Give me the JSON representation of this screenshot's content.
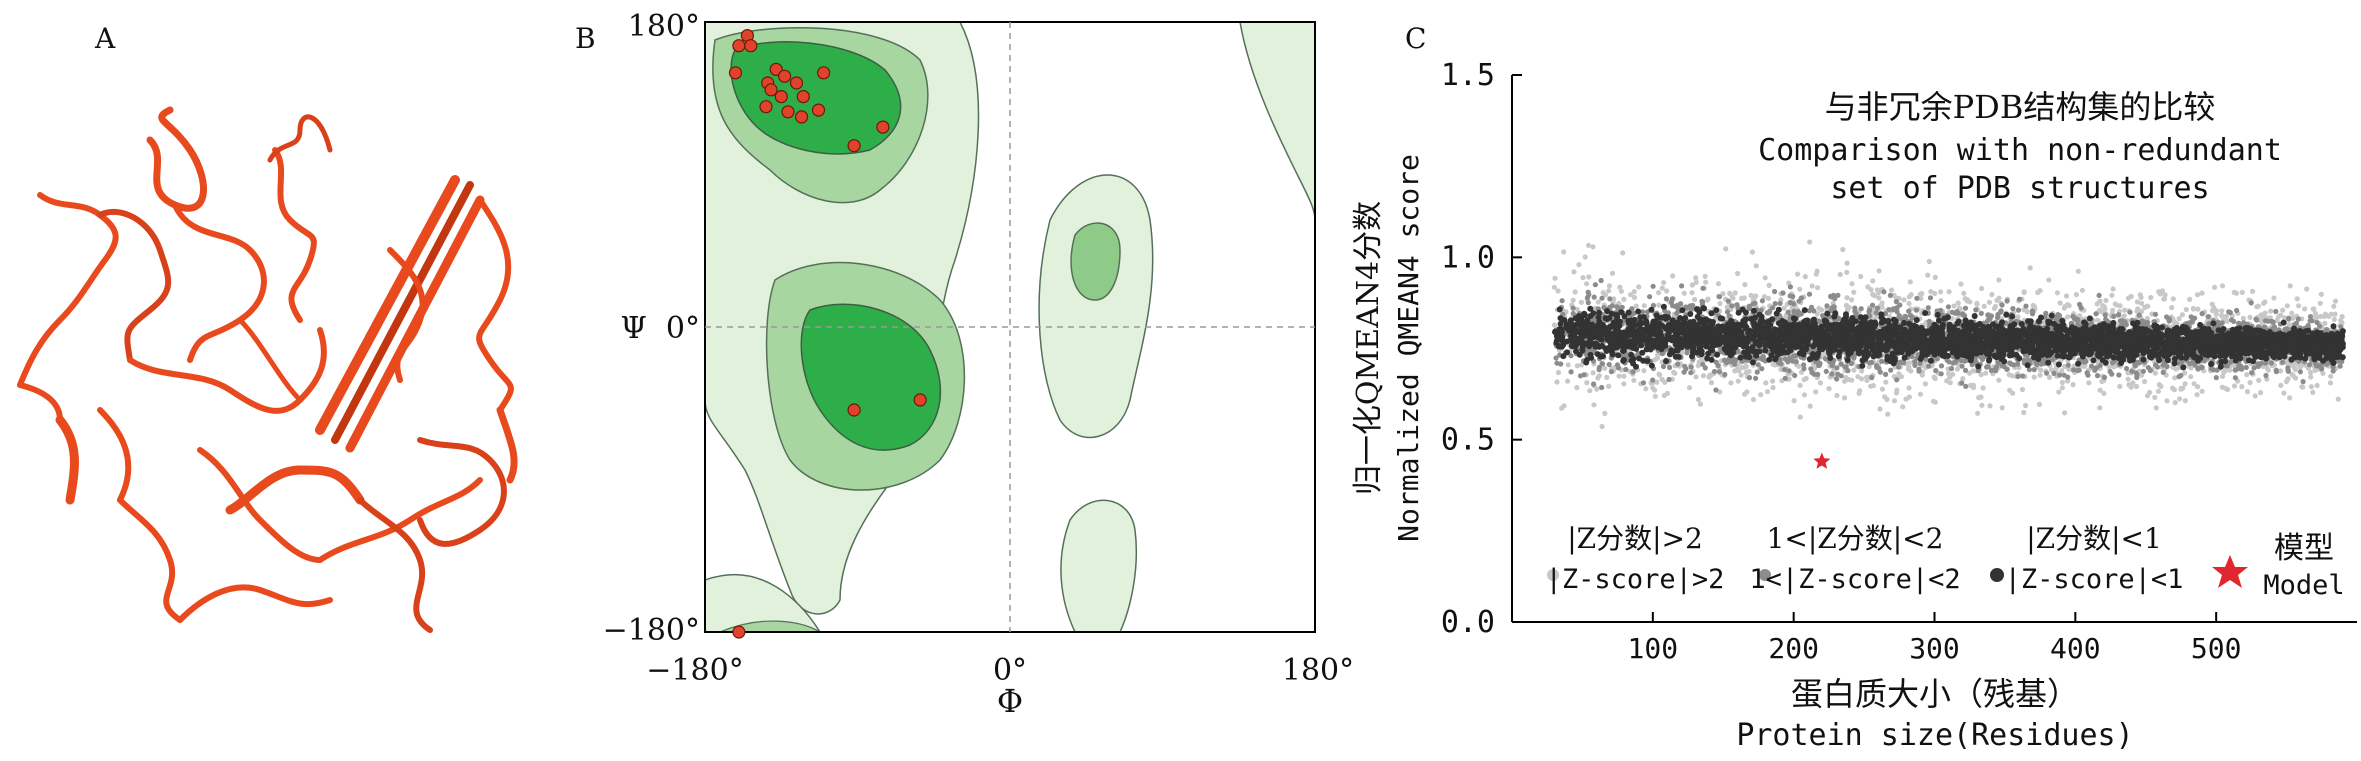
{
  "chart_data": [
    {
      "panel_label": "A",
      "type": "other",
      "colors": {
        "ribbon": "#e8491d",
        "ribbon_dark": "#a82d0c"
      }
    },
    {
      "panel_label": "B",
      "type": "scatter",
      "x_tick_labels": [
        "−180°",
        "0°",
        "180°"
      ],
      "y_tick_labels": [
        "180°",
        "Ψ  0°",
        "−180°"
      ],
      "xlabel": "Φ",
      "xlim": [
        -180,
        180
      ],
      "ylim": [
        -180,
        180
      ],
      "grid": "dashed lines at Φ=0 and Ψ=0",
      "colors": {
        "region_light": "#e2f1dc",
        "region_mid": "#a8d6a0",
        "region_core": "#2eae48",
        "point": "#e0422a",
        "contour": "#55705a"
      },
      "points": [
        {
          "phi": -155,
          "psi": 172
        },
        {
          "phi": -160,
          "psi": 166
        },
        {
          "phi": -153,
          "psi": 166
        },
        {
          "phi": -138,
          "psi": 152
        },
        {
          "phi": -133,
          "psi": 148
        },
        {
          "phi": -143,
          "psi": 144
        },
        {
          "phi": -126,
          "psi": 144
        },
        {
          "phi": -141,
          "psi": 140
        },
        {
          "phi": -135,
          "psi": 136
        },
        {
          "phi": -122,
          "psi": 136
        },
        {
          "phi": -144,
          "psi": 130
        },
        {
          "phi": -131,
          "psi": 127
        },
        {
          "phi": -123,
          "psi": 124
        },
        {
          "phi": -113,
          "psi": 128
        },
        {
          "phi": -110,
          "psi": 150
        },
        {
          "phi": -162,
          "psi": 150
        },
        {
          "phi": -92,
          "psi": 107
        },
        {
          "phi": -75,
          "psi": 118
        },
        {
          "phi": -92,
          "psi": -49
        },
        {
          "phi": -53,
          "psi": -43
        },
        {
          "phi": -160,
          "psi": -180
        }
      ]
    },
    {
      "panel_label": "C",
      "type": "scatter",
      "title_cn": "与非冗余PDB结构集的比较",
      "title_en_line1": "Comparison with non-redundant",
      "title_en_line2": "set of PDB structures",
      "xlabel_cn": "蛋白质大小（残基）",
      "xlabel_en": "Protein size(Residues)",
      "ylabel_cn": "归一化QMEAN4分数",
      "ylabel_en": "Normalized QMEAN4 score",
      "xlim": [
        0,
        600
      ],
      "ylim": [
        0,
        1.5
      ],
      "x_ticks": [
        100,
        200,
        300,
        400,
        500
      ],
      "y_ticks": [
        0.0,
        0.5,
        1.0,
        1.5
      ],
      "x_tick_labels": [
        "100",
        "200",
        "300",
        "400",
        "500"
      ],
      "y_tick_labels": [
        "0.0",
        "0.5",
        "1.0",
        "1.5"
      ],
      "band": {
        "x_start": 30,
        "x_end": 590,
        "center_start": 0.79,
        "center_end": 0.76
      },
      "legend": [
        {
          "cn": "|Z分数|>2",
          "en": "|Z-score|>2",
          "color": "#c8c8c8",
          "marker": "circle"
        },
        {
          "cn": "1<|Z分数|<2",
          "en": "1<|Z-score|<2",
          "color": "#8c8c8c",
          "marker": "circle"
        },
        {
          "cn": "|Z分数|<1",
          "en": "|Z-score|<1",
          "color": "#333333",
          "marker": "circle"
        },
        {
          "cn": "模型",
          "en": "Model",
          "color": "#e0262e",
          "marker": "star"
        }
      ],
      "model_point": {
        "x": 220,
        "y": 0.44
      }
    }
  ]
}
